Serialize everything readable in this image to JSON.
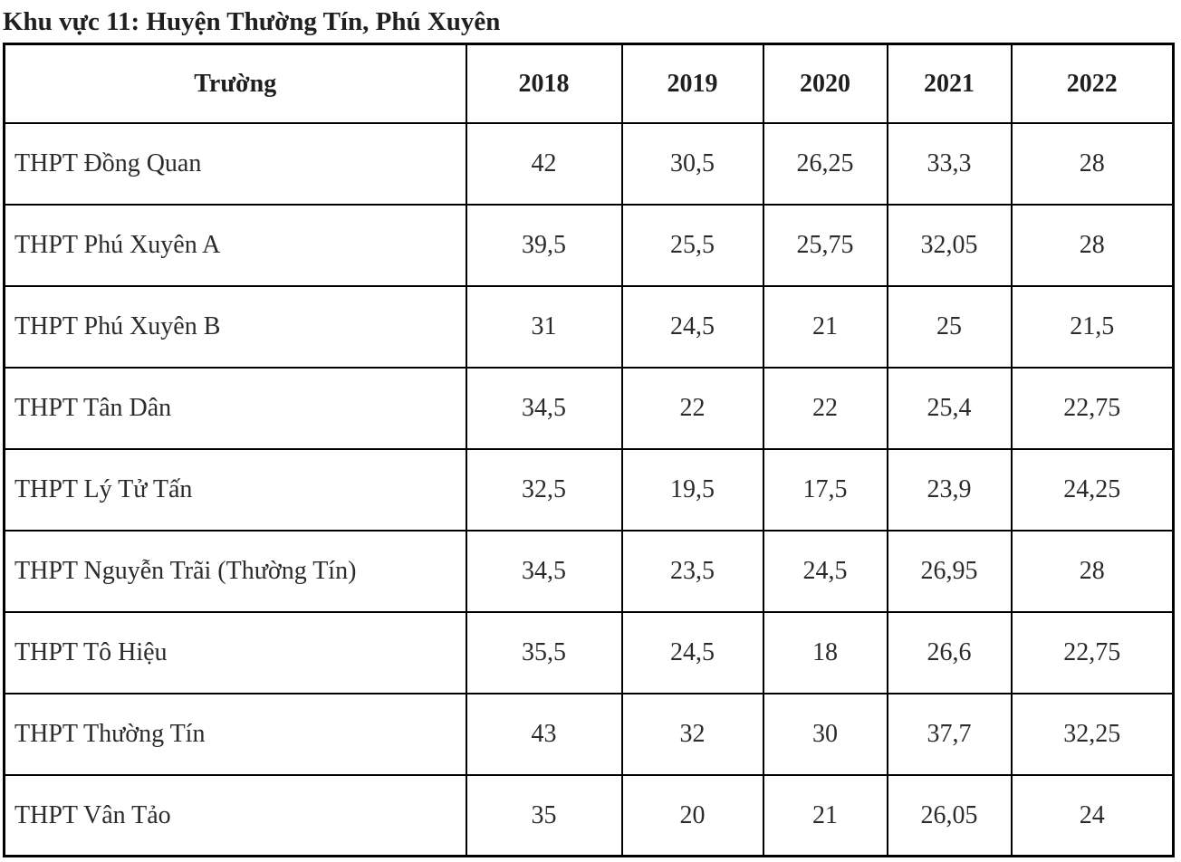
{
  "page": {
    "title": "Khu vực 11: Huyện Thường Tín, Phú Xuyên"
  },
  "table": {
    "columns": [
      "Trường",
      "2018",
      "2019",
      "2020",
      "2021",
      "2022"
    ],
    "rows": [
      {
        "school": "THPT Đồng Quan",
        "scores": [
          "42",
          "30,5",
          "26,25",
          "33,3",
          "28"
        ]
      },
      {
        "school": "THPT Phú Xuyên A",
        "scores": [
          "39,5",
          "25,5",
          "25,75",
          "32,05",
          "28"
        ]
      },
      {
        "school": "THPT Phú Xuyên B",
        "scores": [
          "31",
          "24,5",
          "21",
          "25",
          "21,5"
        ]
      },
      {
        "school": "THPT Tân Dân",
        "scores": [
          "34,5",
          "22",
          "22",
          "25,4",
          "22,75"
        ]
      },
      {
        "school": "THPT Lý Tử Tấn",
        "scores": [
          "32,5",
          "19,5",
          "17,5",
          "23,9",
          "24,25"
        ]
      },
      {
        "school": "THPT Nguyễn Trãi (Thường Tín)",
        "scores": [
          "34,5",
          "23,5",
          "24,5",
          "26,95",
          "28"
        ]
      },
      {
        "school": "THPT Tô Hiệu",
        "scores": [
          "35,5",
          "24,5",
          "18",
          "26,6",
          "22,75"
        ]
      },
      {
        "school": "THPT Thường Tín",
        "scores": [
          "43",
          "32",
          "30",
          "37,7",
          "32,25"
        ]
      },
      {
        "school": "THPT Vân Tảo",
        "scores": [
          "35",
          "20",
          "21",
          "26,05",
          "24"
        ]
      }
    ]
  },
  "colors": {
    "background": "#ffffff",
    "text": "#2b2b2b",
    "border": "#000000"
  }
}
